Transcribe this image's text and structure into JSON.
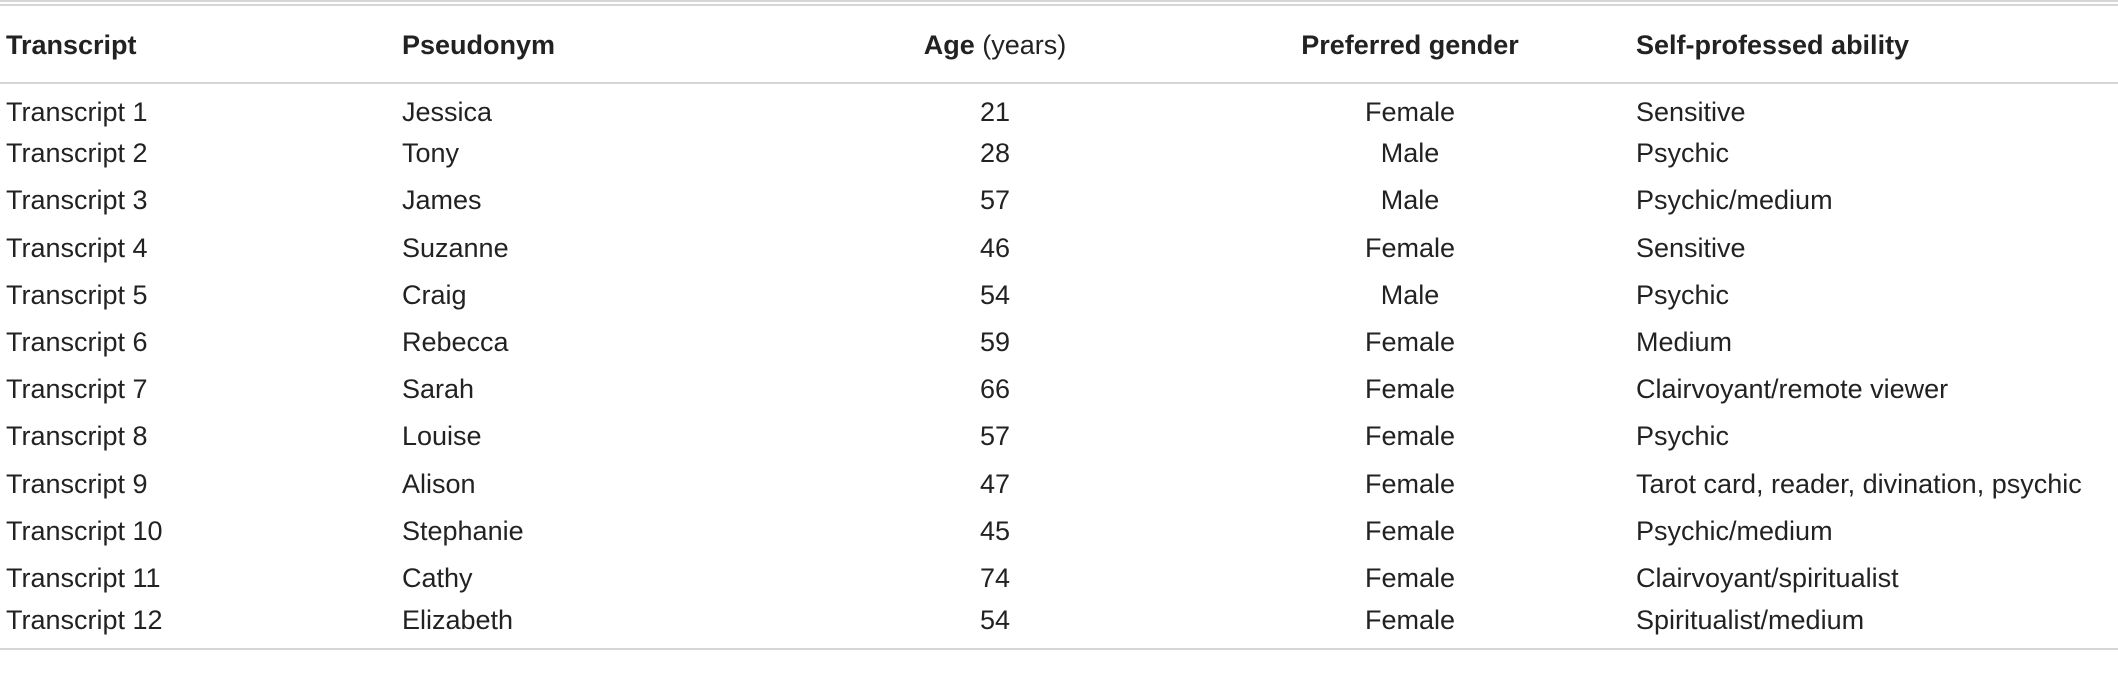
{
  "table": {
    "headers": {
      "transcript": "Transcript",
      "pseudonym": "Pseudonym",
      "age": "Age",
      "age_unit": "(years)",
      "gender": "Preferred gender",
      "ability": "Self-professed ability"
    },
    "rows": [
      {
        "transcript": "Transcript 1",
        "pseudonym": "Jessica",
        "age": "21",
        "gender": "Female",
        "ability": "Sensitive"
      },
      {
        "transcript": "Transcript 2",
        "pseudonym": "Tony",
        "age": "28",
        "gender": "Male",
        "ability": "Psychic"
      },
      {
        "transcript": "Transcript 3",
        "pseudonym": "James",
        "age": "57",
        "gender": "Male",
        "ability": "Psychic/medium"
      },
      {
        "transcript": "Transcript 4",
        "pseudonym": "Suzanne",
        "age": "46",
        "gender": "Female",
        "ability": "Sensitive"
      },
      {
        "transcript": "Transcript 5",
        "pseudonym": "Craig",
        "age": "54",
        "gender": "Male",
        "ability": "Psychic"
      },
      {
        "transcript": "Transcript 6",
        "pseudonym": "Rebecca",
        "age": "59",
        "gender": "Female",
        "ability": "Medium"
      },
      {
        "transcript": "Transcript 7",
        "pseudonym": "Sarah",
        "age": "66",
        "gender": "Female",
        "ability": "Clairvoyant/remote viewer"
      },
      {
        "transcript": "Transcript 8",
        "pseudonym": "Louise",
        "age": "57",
        "gender": "Female",
        "ability": "Psychic"
      },
      {
        "transcript": "Transcript 9",
        "pseudonym": "Alison",
        "age": "47",
        "gender": "Female",
        "ability": "Tarot card, reader, divination, psychic"
      },
      {
        "transcript": "Transcript 10",
        "pseudonym": "Stephanie",
        "age": "45",
        "gender": "Female",
        "ability": "Psychic/medium"
      },
      {
        "transcript": "Transcript 11",
        "pseudonym": "Cathy",
        "age": "74",
        "gender": "Female",
        "ability": "Clairvoyant/spiritualist"
      },
      {
        "transcript": "Transcript 12",
        "pseudonym": "Elizabeth",
        "age": "54",
        "gender": "Female",
        "ability": "Spiritualist/medium"
      }
    ]
  }
}
